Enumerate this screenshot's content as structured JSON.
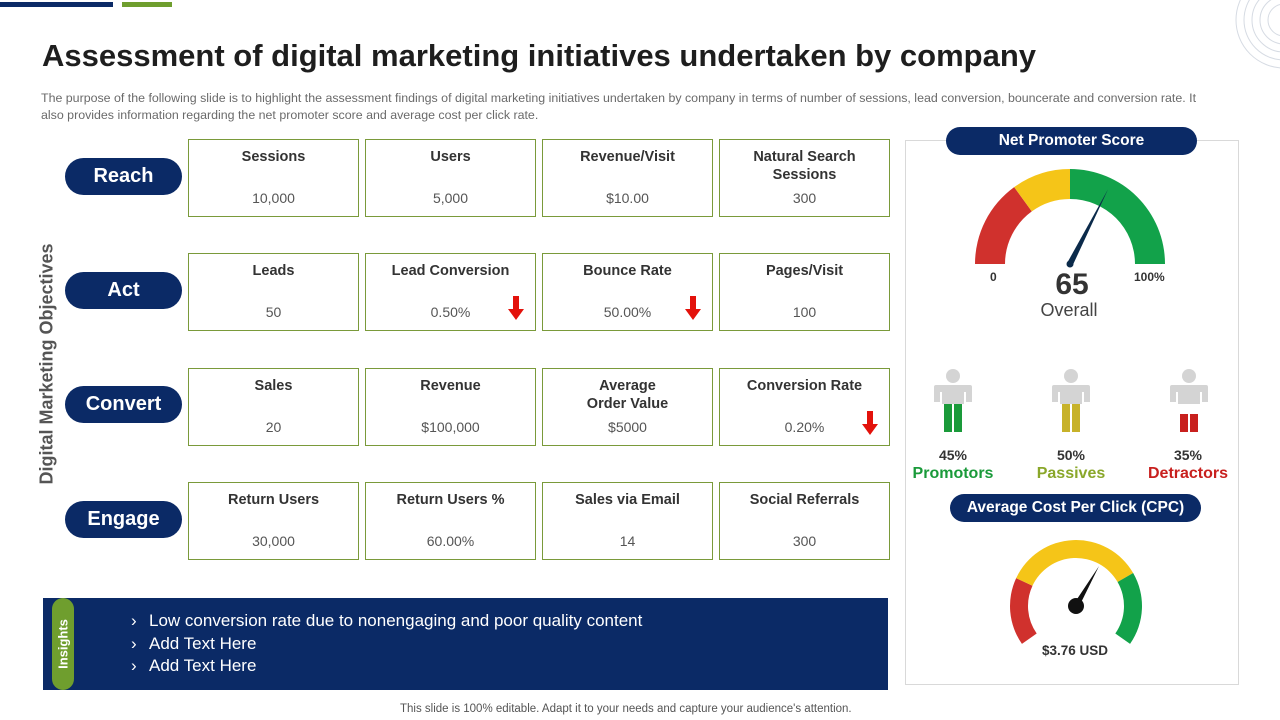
{
  "title": "Assessment of digital marketing initiatives undertaken by company",
  "subtitle": "The purpose of the following slide is to highlight the assessment findings of digital marketing initiatives undertaken by company in terms of number of sessions, lead conversion, bouncerate and conversion rate. It also provides information regarding the net promoter score and average cost per click rate.",
  "objectives_label": "Digital Marketing Objectives",
  "rows": [
    {
      "name": "Reach",
      "metrics": [
        {
          "label": "Sessions",
          "value": "10,000",
          "trend": "none"
        },
        {
          "label": "Users",
          "value": "5,000",
          "trend": "none"
        },
        {
          "label": "Revenue/Visit",
          "value": "$10.00",
          "trend": "none"
        },
        {
          "label": "Natural Search Sessions",
          "value": "300",
          "trend": "none"
        }
      ]
    },
    {
      "name": "Act",
      "metrics": [
        {
          "label": "Leads",
          "value": "50",
          "trend": "none"
        },
        {
          "label": "Lead Conversion",
          "value": "0.50%",
          "trend": "down"
        },
        {
          "label": "Bounce Rate",
          "value": "50.00%",
          "trend": "down"
        },
        {
          "label": "Pages/Visit",
          "value": "100",
          "trend": "none"
        }
      ]
    },
    {
      "name": "Convert",
      "metrics": [
        {
          "label": "Sales",
          "value": "20",
          "trend": "none"
        },
        {
          "label": "Revenue",
          "value": "$100,000",
          "trend": "none"
        },
        {
          "label": "Average Order Value",
          "value": "$5000",
          "trend": "none"
        },
        {
          "label": "Conversion Rate",
          "value": "0.20%",
          "trend": "down"
        }
      ]
    },
    {
      "name": "Engage",
      "metrics": [
        {
          "label": "Return Users",
          "value": "30,000",
          "trend": "none"
        },
        {
          "label": "Return Users %",
          "value": "60.00%",
          "trend": "none"
        },
        {
          "label": "Sales via Email",
          "value": "14",
          "trend": "none"
        },
        {
          "label": "Social Referrals",
          "value": "300",
          "trend": "none"
        }
      ]
    }
  ],
  "insights": {
    "tab_label": "Insights",
    "items": [
      "Low conversion rate due to nonengaging and poor quality content",
      "Add Text Here",
      "Add Text Here"
    ]
  },
  "nps": {
    "title": "Net Promoter Score",
    "score": "65",
    "score_fraction": 0.65,
    "overall_label": "Overall",
    "scale_min": "0",
    "scale_max": "100%",
    "segments": [
      {
        "pct": "45%",
        "label": "Promotors",
        "color": "#1a9a3a"
      },
      {
        "pct": "50%",
        "label": "Passives",
        "color": "#8aa72a"
      },
      {
        "pct": "35%",
        "label": "Detractors",
        "color": "#c8201e"
      }
    ]
  },
  "cpc": {
    "title": "Average Cost Per Click (CPC)",
    "value": "$3.76 USD",
    "needle_fraction": 0.62
  },
  "footer": "This slide is 100% editable. Adapt it to your needs and capture your audience's attention.",
  "colors": {
    "navy": "#0b2a66",
    "green": "#6f9e2e",
    "gauge_red": "#d0312d",
    "gauge_yellow": "#f5c518",
    "gauge_green": "#12a24a",
    "arrow_red": "#e3120b"
  }
}
